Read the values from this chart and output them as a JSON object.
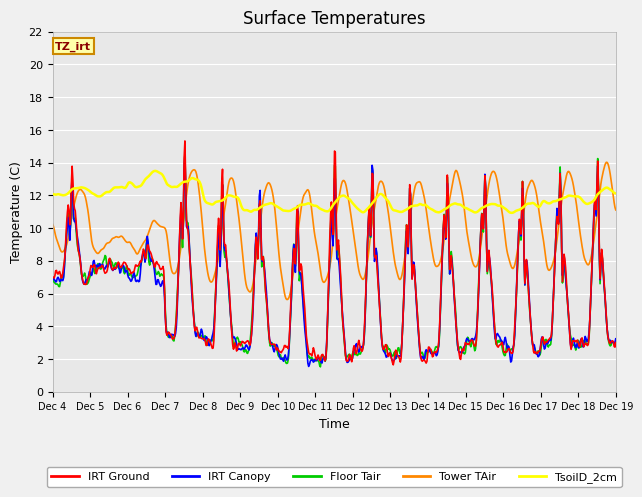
{
  "title": "Surface Temperatures",
  "xlabel": "Time",
  "ylabel": "Temperature (C)",
  "ylim": [
    0,
    22
  ],
  "xlim": [
    0,
    15
  ],
  "series_names": [
    "IRT Ground",
    "IRT Canopy",
    "Floor Tair",
    "Tower TAir",
    "TsoilD_2cm"
  ],
  "series_colors": [
    "#ff0000",
    "#0000ff",
    "#00cc00",
    "#ff8800",
    "#ffff00"
  ],
  "series_lw": [
    1.2,
    1.2,
    1.2,
    1.2,
    1.8
  ],
  "tz_label": "TZ_irt",
  "bg_color": "#e8e8e8",
  "grid_color": "#ffffff",
  "fig_bg": "#f0f0f0",
  "yticks": [
    0,
    2,
    4,
    6,
    8,
    10,
    12,
    14,
    16,
    18,
    20,
    22
  ],
  "xtick_labels": [
    "Dec 4",
    "Dec 5",
    "Dec 6",
    "Dec 7",
    "Dec 8",
    "Dec 9",
    "Dec 10",
    "Dec 11",
    "Dec 12",
    "Dec 13",
    "Dec 14",
    "Dec 15",
    "Dec 16",
    "Dec 17",
    "Dec 18",
    "Dec 19"
  ]
}
